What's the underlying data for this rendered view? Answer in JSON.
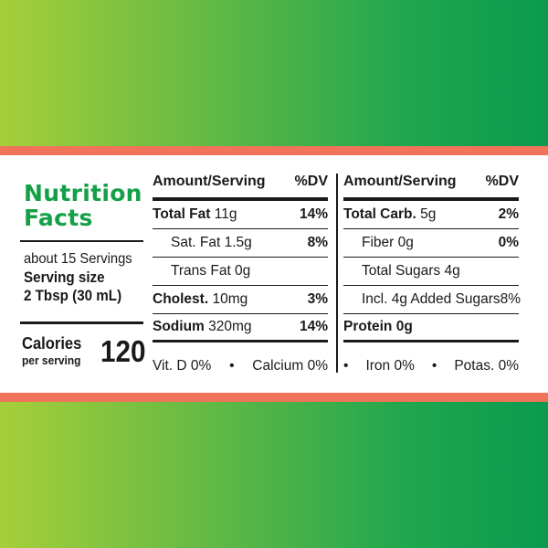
{
  "title_line1": "Nutrition",
  "title_line2": "Facts",
  "servings": "about 15 Servings",
  "serving_size_label": "Serving size",
  "serving_size_value": "2 Tbsp (30 mL)",
  "calories_label": "Calories",
  "per_serving": "per serving",
  "calories_value": "120",
  "header": {
    "amount": "Amount/Serving",
    "dv": "%DV"
  },
  "left_rows": [
    {
      "bold": "Total Fat",
      "amount": " 11g",
      "dv": "14%"
    },
    {
      "label": "Sat. Fat 1.5g",
      "dv": "8%"
    },
    {
      "label": "Trans Fat 0g",
      "dv": ""
    },
    {
      "bold": "Cholest.",
      "amount": " 10mg",
      "dv": "3%"
    },
    {
      "bold": "Sodium",
      "amount": " 320mg",
      "dv": "14%"
    }
  ],
  "right_rows": [
    {
      "bold": "Total Carb.",
      "amount": " 5g",
      "dv": "2%"
    },
    {
      "label": "Fiber 0g",
      "dv": "0%"
    },
    {
      "label": "Total Sugars 4g",
      "dv": ""
    },
    {
      "label": "Incl. 4g Added Sugars",
      "dv": "8%"
    },
    {
      "bold": "Protein 0g",
      "amount": "",
      "dv": ""
    }
  ],
  "footer_left": {
    "a": "Vit. D 0%",
    "sep": "•",
    "b": "Calcium 0%"
  },
  "footer_right": {
    "sep1": "•",
    "a": "Iron 0%",
    "sep2": "•",
    "b": "Potas. 0%"
  },
  "colors": {
    "green_title": "#14a047",
    "stripe": "#f0735a",
    "bg_left": "#a6cf3a",
    "bg_right": "#0b9a4f"
  }
}
